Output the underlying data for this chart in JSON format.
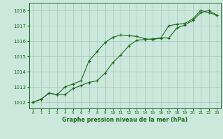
{
  "line1_x": [
    0,
    1,
    2,
    3,
    4,
    5,
    6,
    7,
    8,
    9,
    10,
    11,
    12,
    13,
    14,
    15,
    16,
    17,
    18,
    19,
    20,
    21,
    22,
    23
  ],
  "line1_y": [
    1012.0,
    1012.2,
    1012.6,
    1012.5,
    1013.0,
    1013.2,
    1013.4,
    1014.7,
    1015.3,
    1015.9,
    1016.25,
    1016.4,
    1016.35,
    1016.3,
    1016.15,
    1016.1,
    1016.2,
    1017.0,
    1017.1,
    1017.15,
    1017.45,
    1018.0,
    1017.85,
    1017.7
  ],
  "line2_x": [
    0,
    1,
    2,
    3,
    4,
    5,
    6,
    7,
    8,
    9,
    10,
    11,
    12,
    13,
    14,
    15,
    16,
    17,
    18,
    19,
    20,
    21,
    22,
    23
  ],
  "line2_y": [
    1012.0,
    1012.2,
    1012.6,
    1012.5,
    1012.5,
    1012.9,
    1013.1,
    1013.3,
    1013.4,
    1013.9,
    1014.6,
    1015.1,
    1015.7,
    1016.05,
    1016.1,
    1016.15,
    1016.2,
    1016.2,
    1016.85,
    1017.05,
    1017.35,
    1017.85,
    1018.0,
    1017.7
  ],
  "line_color": "#1a6b1a",
  "bg_color": "#cce8dc",
  "grid_color": "#aaccbc",
  "xlabel": "Graphe pression niveau de la mer (hPa)",
  "xlim": [
    -0.5,
    23.5
  ],
  "ylim": [
    1011.6,
    1018.5
  ],
  "yticks": [
    1012,
    1013,
    1014,
    1015,
    1016,
    1017,
    1018
  ],
  "xticks": [
    0,
    1,
    2,
    3,
    4,
    5,
    6,
    7,
    8,
    9,
    10,
    11,
    12,
    13,
    14,
    15,
    16,
    17,
    18,
    19,
    20,
    21,
    22,
    23
  ],
  "marker": "+",
  "linewidth": 0.8,
  "markersize": 3.5,
  "markeredgewidth": 0.9
}
